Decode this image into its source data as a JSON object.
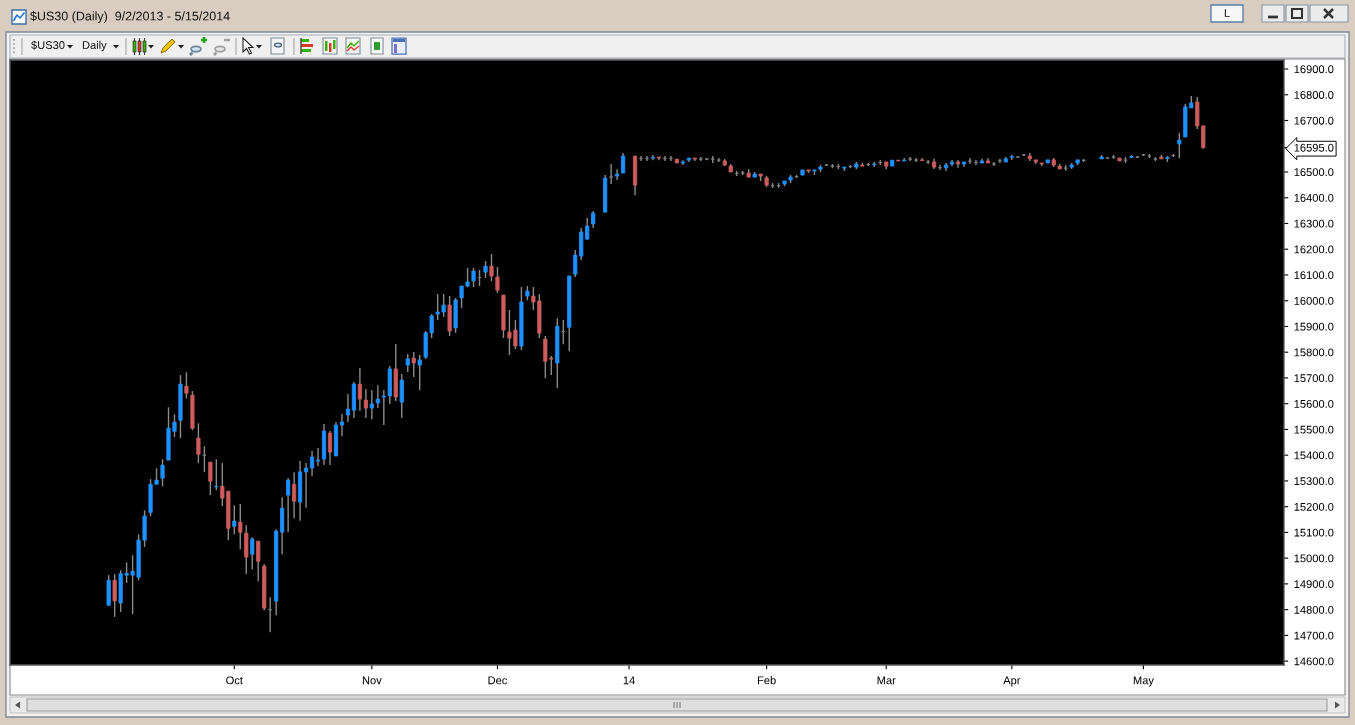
{
  "chart_data": {
    "type": "candlestick",
    "title": "$US30 (Daily)  9/2/2013 - 5/15/2014",
    "categories": [
      null,
      null,
      null,
      null,
      null,
      null,
      null,
      null,
      null,
      null,
      null,
      null,
      null,
      null,
      null,
      null,
      null,
      null,
      null,
      null,
      null,
      null,
      null,
      null,
      null,
      null,
      null,
      null,
      null,
      null,
      null,
      null,
      null,
      null,
      null,
      null,
      null,
      "Oct",
      null,
      null,
      null,
      null,
      null,
      null,
      null,
      null,
      null,
      null,
      null,
      null,
      null,
      null,
      null,
      null,
      null,
      null,
      null,
      null,
      null,
      null,
      "Nov",
      null,
      null,
      null,
      null,
      null,
      null,
      null,
      null,
      null,
      null,
      null,
      null,
      null,
      null,
      null,
      null,
      null,
      null,
      null,
      null,
      "Dec",
      null,
      null,
      null,
      null,
      null,
      null,
      null,
      null,
      null,
      null,
      null,
      null,
      null,
      null,
      null,
      null,
      null,
      null,
      null,
      null,
      null,
      "14",
      null,
      null,
      null,
      null,
      null,
      null,
      null,
      null,
      null,
      null,
      null,
      null,
      null,
      null,
      null,
      null,
      null,
      null,
      null,
      null,
      null,
      null,
      "Feb",
      null,
      null,
      null,
      null,
      null,
      null,
      null,
      null,
      null,
      null,
      null,
      null,
      null,
      null,
      null,
      null,
      null,
      null,
      null,
      "Mar",
      null,
      null,
      null,
      null,
      null,
      null,
      null,
      null,
      null,
      null,
      null,
      null,
      null,
      null,
      null,
      null,
      null,
      null,
      null,
      null,
      "Apr",
      null,
      null,
      null,
      null,
      null,
      null,
      null,
      null,
      null,
      null,
      null,
      null,
      null,
      null,
      null,
      null,
      null,
      null,
      null,
      null,
      null,
      "May",
      null,
      null,
      null,
      null,
      null,
      null,
      null,
      null,
      null,
      null,
      null,
      null,
      null,
      null,
      null,
      null,
      null,
      null,
      null,
      null,
      null,
      null,
      null
    ],
    "ohlc": [
      null,
      null,
      null,
      null,
      null,
      null,
      null,
      null,
      null,
      null,
      null,
      null,
      null,
      null,
      null,
      null,
      [
        14817,
        14934,
        14817,
        14914
      ],
      [
        14914,
        14938,
        14772,
        14834
      ],
      [
        14826,
        14953,
        14791,
        14940
      ],
      [
        14934,
        14984,
        14904,
        14941
      ],
      [
        14934,
        15011,
        14782,
        14949
      ],
      [
        14926,
        15093,
        14914,
        15070
      ],
      [
        15070,
        15186,
        15044,
        15163
      ],
      [
        15178,
        15307,
        15163,
        15287
      ],
      [
        15287,
        15349,
        15287,
        15303
      ],
      [
        15311,
        15384,
        15279,
        15361
      ],
      [
        15381,
        15586,
        15381,
        15505
      ],
      [
        15493,
        15559,
        15470,
        15528
      ],
      [
        15536,
        15711,
        15466,
        15676
      ],
      [
        15668,
        15722,
        15621,
        15641
      ],
      [
        15633,
        15649,
        15497,
        15505
      ],
      [
        15466,
        15524,
        15369,
        15404
      ],
      [
        15400,
        15435,
        15334,
        15400
      ],
      [
        15373,
        15373,
        15245,
        15299
      ],
      [
        15277,
        15384,
        15264,
        15279
      ],
      [
        15279,
        15369,
        15202,
        15233
      ],
      [
        15260,
        15260,
        15070,
        15116
      ],
      [
        15124,
        15206,
        15093,
        15144
      ],
      [
        15140,
        15210,
        15035,
        15101
      ],
      [
        15097,
        15128,
        14938,
        15004
      ],
      [
        15015,
        15081,
        14957,
        15074
      ],
      [
        15066,
        15066,
        14910,
        14988
      ],
      [
        14969,
        14976,
        14798,
        14806
      ],
      [
        14800,
        14848,
        14712,
        14800
      ],
      [
        14833,
        15112,
        14778,
        15105
      ],
      [
        15101,
        15237,
        15015,
        15194
      ],
      [
        15245,
        15311,
        15101,
        15303
      ],
      [
        15287,
        15334,
        15155,
        15221
      ],
      [
        15218,
        15377,
        15145,
        15335
      ],
      [
        15335,
        15370,
        15196,
        15350
      ],
      [
        15350,
        15416,
        15319,
        15393
      ],
      [
        15377,
        15428,
        15358,
        15381
      ],
      [
        15385,
        15521,
        15362,
        15494
      ],
      [
        15486,
        15494,
        15362,
        15412
      ],
      [
        15397,
        15529,
        15397,
        15517
      ],
      [
        15517,
        15560,
        15474,
        15529
      ],
      [
        15556,
        15638,
        15529,
        15579
      ],
      [
        15575,
        15684,
        15544,
        15676
      ],
      [
        15676,
        15739,
        15572,
        15618
      ],
      [
        15614,
        15657,
        15544,
        15583
      ],
      [
        15583,
        15653,
        15540,
        15599
      ],
      [
        15603,
        15672,
        15583,
        15618
      ],
      [
        15626,
        15653,
        15517,
        15630
      ],
      [
        15630,
        15746,
        15599,
        15735
      ],
      [
        15735,
        15832,
        15610,
        15626
      ],
      [
        15606,
        15715,
        15544,
        15692
      ],
      [
        15750,
        15793,
        15723,
        15774
      ],
      [
        15777,
        15801,
        15704,
        15758
      ],
      [
        15750,
        15789,
        15653,
        15770
      ],
      [
        15781,
        15882,
        15774,
        15875
      ],
      [
        15875,
        15948,
        15855,
        15941
      ],
      [
        15948,
        16026,
        15925,
        15956
      ],
      [
        15956,
        16026,
        15937,
        15983
      ],
      [
        15983,
        16018,
        15863,
        15882
      ],
      [
        15894,
        16011,
        15875,
        16003
      ],
      [
        16011,
        16057,
        15972,
        16057
      ],
      [
        16057,
        16127,
        16053,
        16073
      ],
      [
        16077,
        16127,
        16053,
        16115
      ],
      [
        16090,
        16119,
        16057,
        16090
      ],
      [
        16111,
        16154,
        16088,
        16134
      ],
      [
        16134,
        16181,
        16076,
        16096
      ],
      [
        16092,
        16131,
        16030,
        16041
      ],
      [
        16022,
        16022,
        15855,
        15886
      ],
      [
        15878,
        15964,
        15789,
        15855
      ],
      [
        15886,
        15925,
        15812,
        15824
      ],
      [
        15824,
        16053,
        15808,
        15995
      ],
      [
        16018,
        16057,
        16002,
        16037
      ],
      [
        16018,
        16053,
        15964,
        15995
      ],
      [
        15999,
        16026,
        15855,
        15874
      ],
      [
        15851,
        15863,
        15699,
        15765
      ],
      [
        15777,
        15785,
        15711,
        15773
      ],
      [
        15758,
        15932,
        15661,
        15901
      ],
      [
        15880,
        15925,
        15831,
        15880
      ],
      [
        15897,
        16096,
        15804,
        16096
      ],
      [
        16103,
        16197,
        16092,
        16177
      ],
      [
        16173,
        16282,
        16158,
        16267
      ],
      [
        16239,
        16321,
        16239,
        16290
      ],
      [
        16298,
        16348,
        16282,
        16340
      ],
      null,
      [
        16344,
        16488,
        16344,
        16476
      ],
      [
        16480,
        16531,
        16453,
        16480
      ],
      [
        16484,
        16511,
        16469,
        16492
      ],
      [
        16496,
        16574,
        16496,
        16562
      ],
      null,
      [
        16562,
        16562,
        16410,
        16449
      ],
      [
        16552,
        16562,
        16543,
        16552
      ],
      [
        16552,
        16562,
        16543,
        16552
      ],
      [
        16554,
        16566,
        16546,
        16557
      ],
      [
        16558,
        16558,
        16546,
        16554
      ],
      [
        16552,
        16562,
        16543,
        16552
      ],
      [
        16552,
        16562,
        16543,
        16552
      ],
      [
        16550,
        16550,
        16535,
        16535
      ],
      [
        16535,
        16546,
        16527,
        16539
      ],
      [
        16546,
        16554,
        16539,
        16554
      ],
      [
        16554,
        16554,
        16543,
        16550
      ],
      [
        16550,
        16558,
        16543,
        16550
      ],
      [
        16550,
        16554,
        16546,
        16550
      ],
      [
        16550,
        16562,
        16535,
        16550
      ],
      [
        16546,
        16554,
        16539,
        16546
      ],
      [
        16543,
        16550,
        16523,
        16527
      ],
      [
        16523,
        16531,
        16500,
        16500
      ],
      [
        16494,
        16504,
        16484,
        16494
      ],
      [
        16496,
        16504,
        16488,
        16496
      ],
      [
        16496,
        16511,
        16480,
        16480
      ],
      [
        16480,
        16500,
        16480,
        16492
      ],
      [
        16492,
        16492,
        16465,
        16484
      ],
      [
        16477,
        16484,
        16442,
        16449
      ],
      [
        16447,
        16457,
        16438,
        16447
      ],
      [
        16447,
        16457,
        16438,
        16447
      ],
      [
        16453,
        16465,
        16445,
        16465
      ],
      [
        16469,
        16488,
        16457,
        16480
      ],
      [
        16482,
        16488,
        16477,
        16482
      ],
      [
        16488,
        16508,
        16488,
        16508
      ],
      [
        16508,
        16508,
        16496,
        16504
      ],
      [
        16504,
        16508,
        16488,
        16508
      ],
      [
        16511,
        16527,
        16500,
        16519
      ],
      [
        16527,
        16531,
        16523,
        16527
      ],
      [
        16523,
        16531,
        16515,
        16523
      ],
      [
        16521,
        16531,
        16511,
        16521
      ],
      [
        16515,
        16519,
        16504,
        16519
      ],
      [
        16521,
        16527,
        16515,
        16521
      ],
      [
        16519,
        16539,
        16511,
        16531
      ],
      [
        16527,
        16535,
        16523,
        16523
      ],
      [
        16529,
        16535,
        16523,
        16529
      ],
      [
        16528,
        16539,
        16519,
        16531
      ],
      [
        16537,
        16546,
        16527,
        16537
      ],
      [
        16539,
        16539,
        16511,
        16523
      ],
      [
        16523,
        16546,
        16523,
        16546
      ],
      [
        16546,
        16546,
        16543,
        16543
      ],
      [
        16543,
        16554,
        16543,
        16546
      ],
      [
        16550,
        16558,
        16543,
        16550
      ],
      [
        16546,
        16554,
        16539,
        16546
      ],
      [
        16547,
        16554,
        16544,
        16544
      ],
      [
        16539,
        16547,
        16531,
        16539
      ],
      [
        16539,
        16551,
        16512,
        16519
      ],
      [
        16517,
        16527,
        16508,
        16517
      ],
      [
        16516,
        16535,
        16504,
        16527
      ],
      [
        16531,
        16547,
        16523,
        16539
      ],
      [
        16539,
        16547,
        16516,
        16531
      ],
      [
        16531,
        16539,
        16519,
        16539
      ],
      [
        16542,
        16554,
        16531,
        16542
      ],
      [
        16537,
        16547,
        16527,
        16537
      ],
      [
        16535,
        16551,
        16535,
        16543
      ],
      [
        16543,
        16554,
        16535,
        16535
      ],
      [
        16531,
        16539,
        16523,
        16531
      ],
      [
        16543,
        16551,
        16535,
        16543
      ],
      [
        16539,
        16558,
        16539,
        16551
      ],
      [
        16557,
        16566,
        16547,
        16560
      ],
      [
        16558,
        16562,
        16554,
        16558
      ],
      [
        16566,
        16570,
        16562,
        16566
      ],
      [
        16562,
        16574,
        16543,
        16551
      ],
      [
        16547,
        16547,
        16531,
        16539
      ],
      [
        16535,
        16535,
        16523,
        16531
      ],
      [
        16535,
        16547,
        16535,
        16547
      ],
      [
        16547,
        16554,
        16519,
        16527
      ],
      [
        16523,
        16531,
        16512,
        16512
      ],
      [
        16515,
        16527,
        16504,
        16515
      ],
      [
        16519,
        16535,
        16512,
        16527
      ],
      [
        16535,
        16547,
        16527,
        16547
      ],
      [
        16545,
        16551,
        16539,
        16545
      ],
      null,
      null,
      [
        16551,
        16566,
        16551,
        16558
      ],
      [
        16554,
        16558,
        16551,
        16554
      ],
      [
        16558,
        16566,
        16551,
        16558
      ],
      [
        16554,
        16554,
        16543,
        16543
      ],
      [
        16546,
        16558,
        16535,
        16546
      ],
      [
        16556,
        16566,
        16556,
        16560
      ],
      [
        16558,
        16562,
        16554,
        16558
      ],
      [
        16566,
        16570,
        16562,
        16566
      ],
      [
        16562,
        16570,
        16554,
        16562
      ],
      [
        16550,
        16558,
        16543,
        16550
      ],
      [
        16558,
        16566,
        16551,
        16551
      ],
      [
        16552,
        16562,
        16539,
        16556
      ],
      [
        16564,
        16570,
        16558,
        16564
      ],
      [
        16609,
        16652,
        16554,
        16624
      ],
      [
        16636,
        16764,
        16636,
        16753
      ],
      [
        16749,
        16795,
        16749,
        16768
      ],
      [
        16772,
        16791,
        16667,
        16679
      ],
      [
        16679,
        16679,
        16590,
        16595
      ],
      null,
      null,
      null,
      null,
      null,
      null,
      null,
      null,
      null,
      null,
      null,
      null,
      null
    ],
    "colors": [
      null,
      null,
      null,
      null,
      null,
      null,
      null,
      null,
      null,
      null,
      null,
      null,
      null,
      null,
      null,
      null,
      "#1e90ff",
      "#cd5c5c",
      "#1e90ff",
      "#1e90ff",
      "#1e90ff",
      "#1e90ff",
      "#1e90ff",
      "#1e90ff",
      "#1e90ff",
      "#1e90ff",
      "#1e90ff",
      "#1e90ff",
      "#1e90ff",
      "#cd5c5c",
      "#cd5c5c",
      "#cd5c5c",
      "#808080",
      "#cd5c5c",
      "#1e90ff",
      "#cd5c5c",
      "#cd5c5c",
      "#1e90ff",
      "#cd5c5c",
      "#cd5c5c",
      "#1e90ff",
      "#cd5c5c",
      "#cd5c5c",
      "#808080",
      "#1e90ff",
      "#1e90ff",
      "#1e90ff",
      "#cd5c5c",
      "#1e90ff",
      "#1e90ff",
      "#1e90ff",
      "#1e90ff",
      "#1e90ff",
      "#cd5c5c",
      "#1e90ff",
      "#1e90ff",
      "#1e90ff",
      "#1e90ff",
      "#cd5c5c",
      "#cd5c5c",
      "#1e90ff",
      "#1e90ff",
      "#1e90ff",
      "#1e90ff",
      "#cd5c5c",
      "#1e90ff",
      "#1e90ff",
      "#cd5c5c",
      "#1e90ff",
      "#1e90ff",
      "#1e90ff",
      "#1e90ff",
      "#1e90ff",
      "#cd5c5c",
      "#1e90ff",
      "#1e90ff",
      "#1e90ff",
      "#1e90ff",
      "#808080",
      "#1e90ff",
      "#cd5c5c",
      "#cd5c5c",
      "#cd5c5c",
      "#cd5c5c",
      "#cd5c5c",
      "#1e90ff",
      "#1e90ff",
      "#cd5c5c",
      "#cd5c5c",
      "#cd5c5c",
      "#cd5c5c",
      "#1e90ff",
      "#808080",
      "#1e90ff",
      "#1e90ff",
      "#1e90ff",
      "#1e90ff",
      "#1e90ff",
      null,
      "#1e90ff",
      "#808080",
      "#1e90ff",
      "#1e90ff",
      null,
      "#cd5c5c",
      "#808080",
      "#808080",
      "#1e90ff",
      "#cd5c5c",
      "#808080",
      "#808080",
      "#cd5c5c",
      "#1e90ff",
      "#1e90ff",
      "#cd5c5c",
      "#808080",
      "#808080",
      "#808080",
      "#808080",
      "#cd5c5c",
      "#cd5c5c",
      "#808080",
      "#808080",
      "#cd5c5c",
      "#1e90ff",
      "#cd5c5c",
      "#cd5c5c",
      "#808080",
      "#808080",
      "#1e90ff",
      "#1e90ff",
      "#808080",
      "#1e90ff",
      "#cd5c5c",
      "#1e90ff",
      "#1e90ff",
      "#808080",
      "#808080",
      "#808080",
      "#1e90ff",
      "#808080",
      "#1e90ff",
      "#cd5c5c",
      "#808080",
      "#1e90ff",
      "#808080",
      "#cd5c5c",
      "#1e90ff",
      "#cd5c5c",
      "#1e90ff",
      "#808080",
      "#808080",
      "#cd5c5c",
      "#808080",
      "#cd5c5c",
      "#808080",
      "#1e90ff",
      "#1e90ff",
      "#cd5c5c",
      "#1e90ff",
      "#808080",
      "#808080",
      "#1e90ff",
      "#cd5c5c",
      "#808080",
      "#808080",
      "#1e90ff",
      "#1e90ff",
      "#808080",
      "#808080",
      "#cd5c5c",
      "#cd5c5c",
      "#cd5c5c",
      "#1e90ff",
      "#cd5c5c",
      "#cd5c5c",
      "#808080",
      "#1e90ff",
      "#1e90ff",
      "#808080",
      null,
      null,
      "#1e90ff",
      "#808080",
      "#808080",
      "#cd5c5c",
      "#808080",
      "#1e90ff",
      "#808080",
      "#808080",
      "#808080",
      "#808080",
      "#cd5c5c",
      "#1e90ff",
      "#808080",
      "#1e90ff",
      "#1e90ff",
      "#1e90ff",
      "#cd5c5c",
      "#cd5c5c",
      null,
      null,
      null,
      null,
      null,
      null,
      null,
      null,
      null,
      null,
      null,
      null,
      null
    ],
    "ylim": [
      14585,
      16935
    ],
    "yticks": [
      {
        "value": 14600,
        "label": "14600.0"
      },
      {
        "value": 14700,
        "label": "14700.0"
      },
      {
        "value": 14800,
        "label": "14800.0"
      },
      {
        "value": 14900,
        "label": "14900.0"
      },
      {
        "value": 15000,
        "label": "15000.0"
      },
      {
        "value": 15100,
        "label": "15100.0"
      },
      {
        "value": 15200,
        "label": "15200.0"
      },
      {
        "value": 15300,
        "label": "15300.0"
      },
      {
        "value": 15400,
        "label": "15400.0"
      },
      {
        "value": 15500,
        "label": "15500.0"
      },
      {
        "value": 15600,
        "label": "15600.0"
      },
      {
        "value": 15700,
        "label": "15700.0"
      },
      {
        "value": 15800,
        "label": "15800.0"
      },
      {
        "value": 15900,
        "label": "15900.0"
      },
      {
        "value": 16000,
        "label": "16000.0"
      },
      {
        "value": 16100,
        "label": "16100.0"
      },
      {
        "value": 16200,
        "label": "16200.0"
      },
      {
        "value": 16300,
        "label": "16300.0"
      },
      {
        "value": 16400,
        "label": "16400.0"
      },
      {
        "value": 16500,
        "label": "16500.0"
      },
      {
        "value": 16595,
        "label": "16595.0"
      },
      {
        "value": 16700,
        "label": "16700.0"
      },
      {
        "value": 16800,
        "label": "16800.0"
      },
      {
        "value": 16900,
        "label": "16900.0"
      }
    ],
    "annotations": [
      "$US30",
      "Daily",
      "L"
    ]
  }
}
